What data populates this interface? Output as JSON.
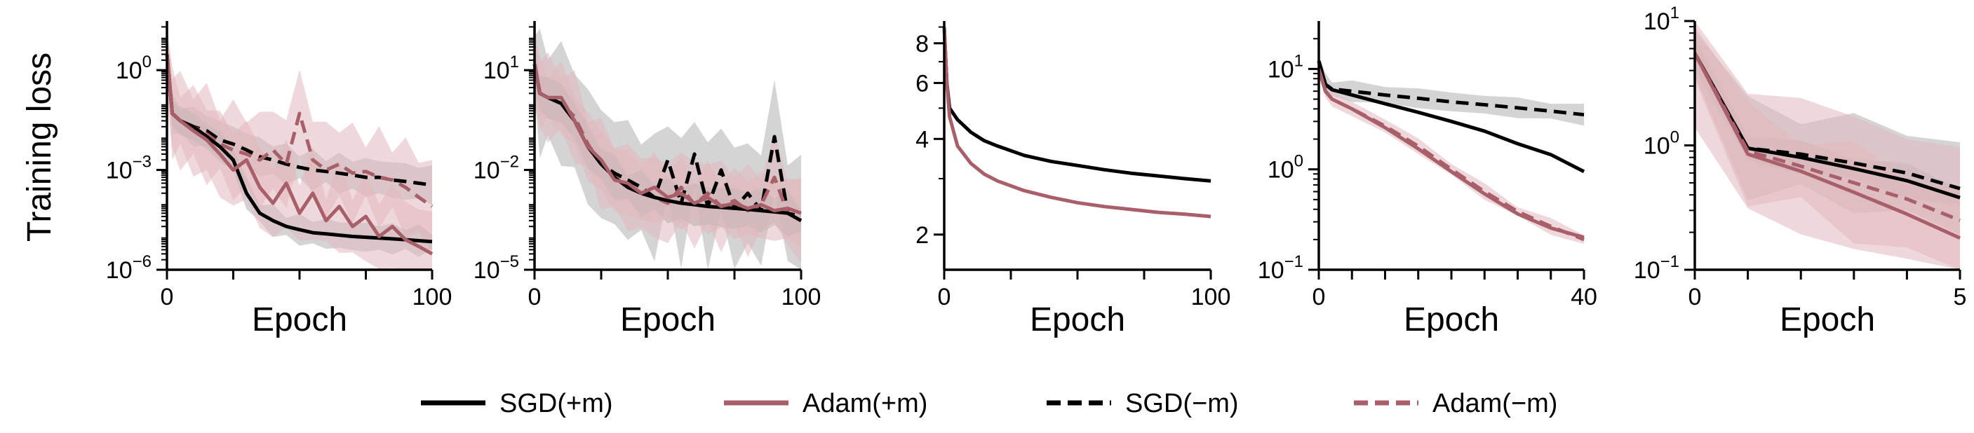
{
  "figure": {
    "ylabel": "Training loss"
  },
  "colors": {
    "sgd": "#000000",
    "adam": "#a85f6a",
    "sgd_band": "#b0b0b0",
    "adam_band": "#e2b8bd"
  },
  "legend": [
    {
      "key": "sgd_pm",
      "label": "SGD(+m)",
      "color": "#000000",
      "dashed": false
    },
    {
      "key": "adam_pm",
      "label": "Adam(+m)",
      "color": "#a85f6a",
      "dashed": false
    },
    {
      "key": "sgd_mm",
      "label": "SGD(−m)",
      "color": "#000000",
      "dashed": true
    },
    {
      "key": "adam_mm",
      "label": "Adam(−m)",
      "color": "#a85f6a",
      "dashed": true
    }
  ],
  "chart_data": [
    {
      "type": "line",
      "xlabel": "Epoch",
      "ylabel": "Training loss",
      "yscale": "log",
      "xlim": [
        0,
        100
      ],
      "ylim": [
        1e-06,
        30
      ],
      "x_ticks": [
        0,
        100
      ],
      "x_minor_ticks": [
        25,
        50,
        75
      ],
      "y_ticks": [
        {
          "v": 1e-06,
          "base": "10",
          "exp": "−6"
        },
        {
          "v": 0.001,
          "base": "10",
          "exp": "−3"
        },
        {
          "v": 1,
          "base": "10",
          "exp": "0"
        }
      ],
      "series": [
        {
          "name": "SGD(−m)",
          "color": "#000000",
          "dashed": true,
          "band": 0.45,
          "x": [
            0,
            2,
            5,
            10,
            15,
            20,
            25,
            30,
            35,
            40,
            45,
            50,
            55,
            60,
            65,
            70,
            75,
            80,
            85,
            90,
            95,
            100
          ],
          "y": [
            3,
            0.05,
            0.03,
            0.02,
            0.015,
            0.008,
            0.006,
            0.004,
            0.0025,
            0.002,
            0.0015,
            0.0012,
            0.001,
            0.0009,
            0.0008,
            0.0007,
            0.0006,
            0.0006,
            0.0005,
            0.00045,
            0.0004,
            0.00035
          ]
        },
        {
          "name": "Adam(−m)",
          "color": "#a85f6a",
          "dashed": true,
          "band": 1.1,
          "x": [
            0,
            2,
            5,
            10,
            15,
            20,
            25,
            30,
            35,
            40,
            45,
            50,
            55,
            60,
            65,
            70,
            75,
            80,
            85,
            90,
            95,
            100
          ],
          "y": [
            3,
            0.05,
            0.03,
            0.02,
            0.012,
            0.006,
            0.004,
            0.003,
            0.002,
            0.004,
            0.0015,
            0.05,
            0.002,
            0.001,
            0.0015,
            0.0008,
            0.0009,
            0.0006,
            0.0005,
            0.0003,
            0.00015,
            8e-05
          ]
        },
        {
          "name": "SGD(+m)",
          "color": "#000000",
          "dashed": false,
          "band": 0.35,
          "x": [
            0,
            2,
            5,
            10,
            15,
            20,
            25,
            30,
            35,
            40,
            45,
            50,
            55,
            60,
            65,
            70,
            75,
            80,
            85,
            90,
            95,
            100
          ],
          "y": [
            3,
            0.05,
            0.03,
            0.02,
            0.01,
            0.005,
            0.002,
            0.0002,
            5e-05,
            3e-05,
            2e-05,
            1.6e-05,
            1.3e-05,
            1.2e-05,
            1.1e-05,
            1e-05,
            9.5e-06,
            9e-06,
            8.5e-06,
            8e-06,
            7.5e-06,
            7e-06
          ]
        },
        {
          "name": "Adam(+m)",
          "color": "#a85f6a",
          "dashed": false,
          "band": 1.0,
          "x": [
            0,
            2,
            5,
            10,
            15,
            20,
            25,
            30,
            35,
            40,
            45,
            50,
            55,
            60,
            65,
            70,
            75,
            80,
            85,
            90,
            95,
            100
          ],
          "y": [
            3,
            0.05,
            0.03,
            0.015,
            0.008,
            0.003,
            0.001,
            0.002,
            0.0003,
            0.0001,
            0.0004,
            5e-05,
            0.0002,
            3e-05,
            8e-05,
            2e-05,
            4e-05,
            1e-05,
            2e-05,
            8e-06,
            5e-06,
            3e-06
          ]
        }
      ]
    },
    {
      "type": "line",
      "xlabel": "Epoch",
      "ylabel": "",
      "yscale": "log",
      "xlim": [
        0,
        100
      ],
      "ylim": [
        1e-05,
        300
      ],
      "x_ticks": [
        0,
        100
      ],
      "x_minor_ticks": [
        25,
        50,
        75
      ],
      "y_ticks": [
        {
          "v": 1e-05,
          "base": "10",
          "exp": "−5"
        },
        {
          "v": 0.01,
          "base": "10",
          "exp": "−2"
        },
        {
          "v": 10,
          "base": "10",
          "exp": "1"
        }
      ],
      "series": [
        {
          "name": "SGD(−m)",
          "color": "#000000",
          "dashed": true,
          "band": 1.4,
          "x": [
            0,
            2,
            5,
            10,
            15,
            20,
            25,
            30,
            35,
            40,
            45,
            50,
            55,
            60,
            65,
            70,
            75,
            80,
            85,
            90,
            95,
            100
          ],
          "y": [
            15,
            2,
            1.5,
            1,
            0.3,
            0.05,
            0.015,
            0.008,
            0.005,
            0.003,
            0.0015,
            0.02,
            0.001,
            0.03,
            0.0008,
            0.01,
            0.0007,
            0.002,
            0.0006,
            0.1,
            0.0005,
            0.0004
          ]
        },
        {
          "name": "Adam(−m)",
          "color": "#a85f6a",
          "dashed": true,
          "band": 1.0,
          "x": [
            0,
            2,
            5,
            10,
            15,
            20,
            25,
            30,
            35,
            40,
            45,
            50,
            55,
            60,
            65,
            70,
            75,
            80,
            85,
            90,
            95,
            100
          ],
          "y": [
            15,
            2,
            1.5,
            1,
            0.4,
            0.06,
            0.015,
            0.006,
            0.003,
            0.002,
            0.0015,
            0.001,
            0.003,
            0.0009,
            0.002,
            0.0008,
            0.0012,
            0.0006,
            0.0009,
            0.006,
            0.0005,
            0.0003
          ]
        },
        {
          "name": "SGD(+m)",
          "color": "#000000",
          "dashed": false,
          "band": 0.5,
          "x": [
            0,
            2,
            5,
            10,
            15,
            20,
            25,
            30,
            35,
            40,
            45,
            50,
            55,
            60,
            65,
            70,
            75,
            80,
            85,
            90,
            95,
            100
          ],
          "y": [
            15,
            2,
            1.5,
            1,
            0.3,
            0.05,
            0.015,
            0.006,
            0.003,
            0.002,
            0.0015,
            0.0012,
            0.001,
            0.0009,
            0.0008,
            0.00075,
            0.0007,
            0.00065,
            0.0006,
            0.00055,
            0.0005,
            0.0003
          ]
        },
        {
          "name": "Adam(+m)",
          "color": "#a85f6a",
          "dashed": false,
          "band": 0.8,
          "x": [
            0,
            2,
            5,
            10,
            15,
            20,
            25,
            30,
            35,
            40,
            45,
            50,
            55,
            60,
            65,
            70,
            75,
            80,
            85,
            90,
            95,
            100
          ],
          "y": [
            15,
            2,
            1.5,
            1.5,
            0.3,
            0.05,
            0.02,
            0.005,
            0.004,
            0.002,
            0.003,
            0.0015,
            0.002,
            0.001,
            0.0015,
            0.0008,
            0.001,
            0.0007,
            0.0009,
            0.0006,
            0.0007,
            0.0005
          ]
        }
      ]
    },
    {
      "type": "line",
      "xlabel": "Epoch",
      "ylabel": "",
      "yscale": "log",
      "xlim": [
        0,
        100
      ],
      "ylim": [
        1.55,
        9.4
      ],
      "x_ticks": [
        0,
        100
      ],
      "x_minor_ticks": [
        25,
        50,
        75
      ],
      "y_ticks": [
        {
          "v": 2,
          "label": "2"
        },
        {
          "v": 4,
          "label": "4"
        },
        {
          "v": 6,
          "label": "6"
        },
        {
          "v": 8,
          "label": "8"
        }
      ],
      "series": [
        {
          "name": "SGD(+m)",
          "color": "#000000",
          "dashed": false,
          "band": 0,
          "x": [
            0,
            1,
            2,
            5,
            10,
            15,
            20,
            30,
            40,
            50,
            60,
            70,
            80,
            90,
            100
          ],
          "y": [
            9,
            6,
            5,
            4.6,
            4.2,
            3.95,
            3.8,
            3.55,
            3.4,
            3.3,
            3.2,
            3.12,
            3.06,
            3.0,
            2.95
          ]
        },
        {
          "name": "Adam(+m)",
          "color": "#a85f6a",
          "dashed": false,
          "band": 0,
          "x": [
            0,
            1,
            2,
            5,
            10,
            15,
            20,
            30,
            40,
            50,
            60,
            70,
            80,
            90,
            100
          ],
          "y": [
            9,
            6,
            4.7,
            3.8,
            3.35,
            3.1,
            2.95,
            2.75,
            2.62,
            2.52,
            2.45,
            2.4,
            2.35,
            2.32,
            2.28
          ]
        }
      ]
    },
    {
      "type": "line",
      "xlabel": "Epoch",
      "ylabel": "",
      "yscale": "log",
      "xlim": [
        0,
        40
      ],
      "ylim": [
        0.1,
        30
      ],
      "x_ticks": [
        0,
        40
      ],
      "x_minor_ticks": [
        5,
        10,
        15,
        20,
        25,
        30,
        35
      ],
      "y_ticks": [
        {
          "v": 0.1,
          "base": "10",
          "exp": "−1"
        },
        {
          "v": 1,
          "base": "10",
          "exp": "0"
        },
        {
          "v": 10,
          "base": "10",
          "exp": "1"
        }
      ],
      "series": [
        {
          "name": "SGD(−m)",
          "color": "#000000",
          "dashed": true,
          "band": 0.08,
          "x": [
            0,
            1,
            2,
            5,
            10,
            15,
            20,
            25,
            30,
            35,
            40
          ],
          "y": [
            12,
            7,
            6.3,
            6,
            5.5,
            5.1,
            4.7,
            4.4,
            4.1,
            3.8,
            3.5
          ]
        },
        {
          "name": "SGD(+m)",
          "color": "#000000",
          "dashed": false,
          "band": 0,
          "x": [
            0,
            1,
            2,
            5,
            10,
            15,
            20,
            25,
            30,
            35,
            40
          ],
          "y": [
            12,
            7,
            6.2,
            5.5,
            4.5,
            3.7,
            3.0,
            2.4,
            1.8,
            1.4,
            0.95
          ]
        },
        {
          "name": "Adam(−m)",
          "color": "#a85f6a",
          "dashed": true,
          "band": 0.06,
          "x": [
            0,
            1,
            2,
            5,
            10,
            15,
            20,
            25,
            30,
            35,
            40
          ],
          "y": [
            10,
            6,
            5,
            4,
            2.7,
            1.7,
            1.0,
            0.6,
            0.38,
            0.27,
            0.2
          ]
        },
        {
          "name": "Adam(+m)",
          "color": "#a85f6a",
          "dashed": false,
          "band": 0,
          "x": [
            0,
            1,
            2,
            5,
            10,
            15,
            20,
            25,
            30,
            35,
            40
          ],
          "y": [
            10,
            6,
            5,
            4,
            2.6,
            1.6,
            0.95,
            0.57,
            0.36,
            0.26,
            0.21
          ]
        }
      ]
    },
    {
      "type": "line",
      "xlabel": "Epoch",
      "ylabel": "",
      "yscale": "log",
      "xlim": [
        0,
        5
      ],
      "ylim": [
        0.1,
        10
      ],
      "x_ticks": [
        0,
        5
      ],
      "x_minor_ticks": [
        1,
        2,
        3,
        4
      ],
      "y_ticks": [
        {
          "v": 0.1,
          "base": "10",
          "exp": "−1"
        },
        {
          "v": 1,
          "base": "10",
          "exp": "0"
        },
        {
          "v": 10,
          "base": "10",
          "exp": "1"
        }
      ],
      "series": [
        {
          "name": "SGD(−m)",
          "color": "#000000",
          "dashed": true,
          "band": 0.3,
          "x": [
            0,
            1,
            2,
            3,
            4,
            5
          ],
          "y": [
            5.5,
            0.95,
            0.85,
            0.72,
            0.6,
            0.45
          ]
        },
        {
          "name": "SGD(+m)",
          "color": "#000000",
          "dashed": false,
          "band": 0.1,
          "x": [
            0,
            1,
            2,
            3,
            4,
            5
          ],
          "y": [
            5.5,
            0.95,
            0.8,
            0.65,
            0.52,
            0.38
          ]
        },
        {
          "name": "Adam(−m)",
          "color": "#a85f6a",
          "dashed": true,
          "band": 0.45,
          "x": [
            0,
            1,
            2,
            3,
            4,
            5
          ],
          "y": [
            5.5,
            0.9,
            0.68,
            0.5,
            0.37,
            0.25
          ]
        },
        {
          "name": "Adam(+m)",
          "color": "#a85f6a",
          "dashed": false,
          "band": 0.3,
          "x": [
            0,
            1,
            2,
            3,
            4,
            5
          ],
          "y": [
            5.5,
            0.85,
            0.62,
            0.42,
            0.28,
            0.18
          ]
        }
      ]
    }
  ]
}
